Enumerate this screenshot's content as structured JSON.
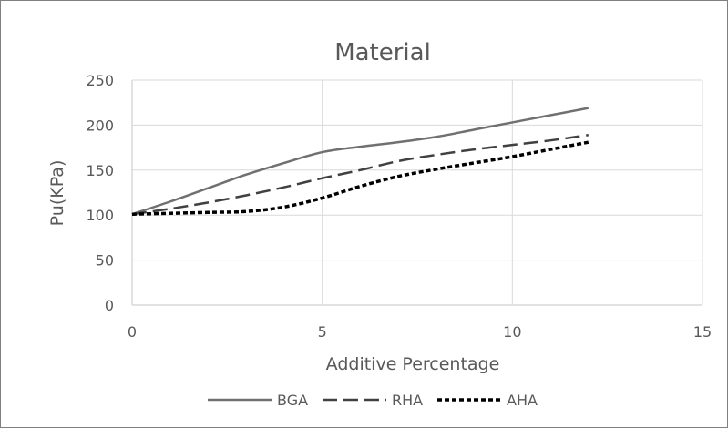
{
  "chart_data": {
    "type": "line",
    "title": "Material",
    "xlabel": "Additive Percentage",
    "ylabel": "Pu(KPa)",
    "xlim": [
      0,
      15
    ],
    "ylim": [
      0,
      250
    ],
    "x_ticks": [
      0,
      5,
      10,
      15
    ],
    "y_ticks": [
      0,
      50,
      100,
      150,
      200,
      250
    ],
    "x_tick_labels": [
      "0",
      "5",
      "10",
      "15"
    ],
    "y_tick_labels": [
      "0",
      "50",
      "100",
      "150",
      "200",
      "250"
    ],
    "grid": true,
    "legend_position": "bottom",
    "series": [
      {
        "name": "BGA",
        "color": "#707070",
        "style": "solid",
        "x": [
          0,
          1,
          2,
          3,
          4,
          5,
          6,
          7,
          8,
          9,
          10,
          11,
          12
        ],
        "y": [
          101,
          115,
          130,
          145,
          158,
          170,
          176,
          181,
          187,
          195,
          203,
          211,
          219
        ]
      },
      {
        "name": "RHA",
        "color": "#404040",
        "style": "long-dash",
        "x": [
          0,
          1,
          2,
          3,
          4,
          5,
          6,
          7,
          8,
          9,
          10,
          11,
          12
        ],
        "y": [
          101,
          107,
          114,
          122,
          131,
          141,
          150,
          160,
          167,
          173,
          178,
          183,
          189
        ]
      },
      {
        "name": "AHA",
        "color": "#000000",
        "style": "short-dash",
        "x": [
          0,
          1,
          2,
          3,
          4,
          5,
          6,
          7,
          8,
          9,
          10,
          11,
          12
        ],
        "y": [
          101,
          102,
          103,
          104,
          109,
          119,
          132,
          143,
          151,
          158,
          165,
          173,
          181
        ]
      }
    ]
  }
}
